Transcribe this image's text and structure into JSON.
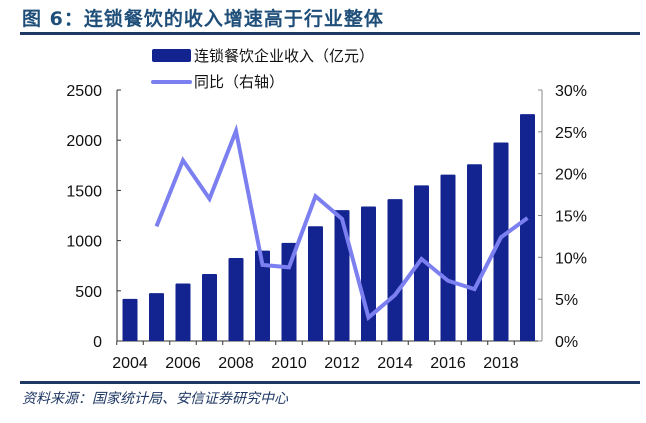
{
  "title": "图 6：连锁餐饮的收入增速高于行业整体",
  "source": "资料来源：国家统计局、安信证券研究中心",
  "chart_data": {
    "type": "bar+line",
    "categories": [
      "2004",
      "2005",
      "2006",
      "2007",
      "2008",
      "2009",
      "2010",
      "2011",
      "2012",
      "2013",
      "2014",
      "2015",
      "2016",
      "2017",
      "2018",
      "2019"
    ],
    "x_tick_labels": [
      "2004",
      "2006",
      "2008",
      "2010",
      "2012",
      "2014",
      "2016",
      "2018"
    ],
    "series": [
      {
        "name": "连锁餐饮企业收入（亿元）",
        "type": "bar",
        "axis": "left",
        "color": "#13238f",
        "values": [
          420,
          477,
          573,
          667,
          827,
          900,
          977,
          1143,
          1303,
          1340,
          1413,
          1550,
          1657,
          1760,
          1977,
          2260
        ]
      },
      {
        "name": "同比（右轴）",
        "type": "line",
        "axis": "right",
        "color": "#7b7ff0",
        "values": [
          null,
          13.7,
          21.6,
          17.0,
          25.1,
          9.1,
          8.8,
          17.3,
          14.6,
          2.8,
          5.5,
          9.8,
          7.2,
          6.2,
          12.4,
          14.7
        ]
      }
    ],
    "y_left": {
      "lim": [
        0,
        2500
      ],
      "ticks": [
        "0",
        "500",
        "1000",
        "1500",
        "2000",
        "2500"
      ]
    },
    "y_right": {
      "lim": [
        0,
        30
      ],
      "ticks": [
        "0%",
        "5%",
        "10%",
        "15%",
        "20%",
        "25%",
        "30%"
      ]
    },
    "legend_position": "top",
    "grid": false
  }
}
